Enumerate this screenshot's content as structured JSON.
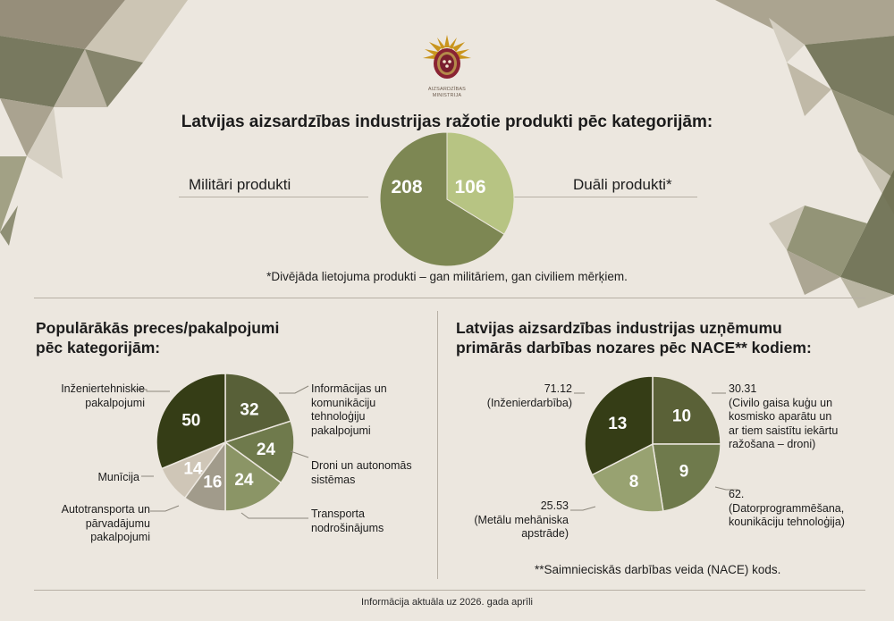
{
  "logo": {
    "text_line1": "AIZSARDZĪBAS",
    "text_line2": "MINISTRIJA"
  },
  "top": {
    "title": "Latvijas aizsardzības industrijas ražotie produkti pēc kategorijām:",
    "left_label": "Militāri produkti",
    "right_label": "Duāli produkti*",
    "footnote": "*Divējāda lietojuma produkti – gan militāriem, gan civiliem mērķiem."
  },
  "left_section": {
    "title_line1": "Populārākās preces/pakalpojumi",
    "title_line2": "pēc kategorijām:"
  },
  "right_section": {
    "title_line1": "Latvijas aizsardzības industrijas uzņēmumu",
    "title_line2": "primārās darbības nozares pēc NACE** kodiem:",
    "footnote": "**Saimnieciskās darbības veida (NACE) kods."
  },
  "bottom_note": "Informācija aktuāla uz 2026. gada aprīli",
  "chart_data": [
    {
      "type": "pie",
      "title": "Latvijas aizsardzības industrijas ražotie produkti pēc kategorijām:",
      "slices": [
        {
          "label": "Militāri produkti",
          "value": 208,
          "color": "#7d8753"
        },
        {
          "label": "Duāli produkti*",
          "value": 106,
          "color": "#b7c483"
        }
      ]
    },
    {
      "type": "pie",
      "title": "Populārākās preces/pakalpojumi pēc kategorijām:",
      "slices": [
        {
          "label": "Inženiertehniskie pakalpojumi",
          "label_lines": [
            "Inženiertehniskie",
            "pakalpojumi"
          ],
          "value": 50,
          "color": "#353d16"
        },
        {
          "label": "Informācijas un komunikāciju tehnoloģiju pakalpojumi",
          "label_lines": [
            "Informācijas un",
            "komunikāciju",
            "tehnoloģiju",
            "pakalpojumi"
          ],
          "value": 32,
          "color": "#586038"
        },
        {
          "label": "Droni un autonomās sistēmas",
          "label_lines": [
            "Droni un autonomās",
            "sistēmas"
          ],
          "value": 24,
          "color": "#6f7a4c"
        },
        {
          "label": "Transporta nodrošinājums",
          "label_lines": [
            "Transporta",
            "nodrošinājums"
          ],
          "value": 24,
          "color": "#8b9566"
        },
        {
          "label": "Autotransporta un pārvadājumu pakalpojumi",
          "label_lines": [
            "Autotransporta un",
            "pārvadājumu",
            "pakalpojumi"
          ],
          "value": 16,
          "color": "#a19b8b"
        },
        {
          "label": "Munīcija",
          "label_lines": [
            "Munīcija"
          ],
          "value": 14,
          "color": "#cfc6b7"
        }
      ]
    },
    {
      "type": "pie",
      "title": "Latvijas aizsardzības industrijas uzņēmumu primārās darbības nozares pēc NACE** kodiem:",
      "slices": [
        {
          "label": "30.31 (Civilo gaisa kuģu un kosmisko aparātu un ar tiem saistītu iekārtu ražošana – droni)",
          "label_lines": [
            "30.31",
            "(Civilo gaisa kuģu un",
            "kosmisko aparātu un",
            "ar tiem saistītu iekārtu",
            "ražošana – droni)"
          ],
          "value": 10,
          "color": "#5a6137"
        },
        {
          "label": "62. (Datorprogrammēšana, kounikāciju tehnoloģija)",
          "label_lines": [
            "62.",
            "(Datorprogrammēšana,",
            "kounikāciju tehnoloģija)"
          ],
          "value": 9,
          "color": "#6f7a4c"
        },
        {
          "label": "25.53 (Metālu mehāniska apstrāde)",
          "label_lines": [
            "25.53",
            "(Metālu mehāniska",
            "apstrāde)"
          ],
          "value": 8,
          "color": "#98a271"
        },
        {
          "label": "71.12 (Inženierdarbība)",
          "label_lines": [
            "71.12",
            "(Inženierdarbība)"
          ],
          "value": 13,
          "color": "#353d16"
        }
      ]
    }
  ]
}
